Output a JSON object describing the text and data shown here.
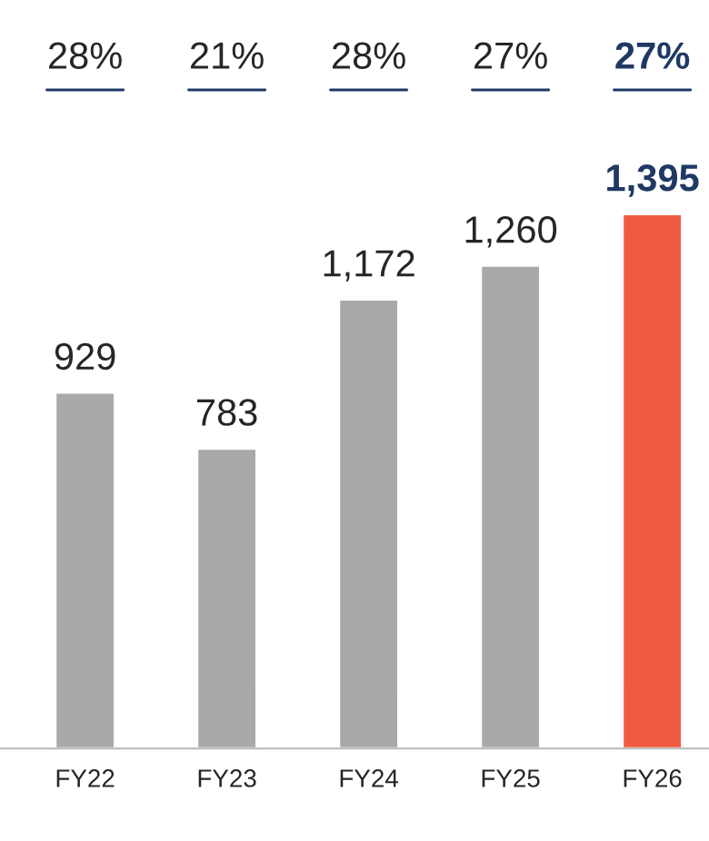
{
  "chart_data": {
    "type": "bar",
    "categories": [
      "FY22",
      "FY23",
      "FY24",
      "FY25",
      "FY26"
    ],
    "values": [
      929,
      783,
      1172,
      1260,
      1395
    ],
    "value_labels": [
      "929",
      "783",
      "1,172",
      "1,260",
      "1,395"
    ],
    "colors": [
      "#a9a9ab",
      "#a9a9ab",
      "#a9a9ab",
      "#a9a9ab",
      "#f05a40"
    ],
    "annotations": [
      "28%",
      "21%",
      "28%",
      "27%",
      "27%"
    ]
  }
}
